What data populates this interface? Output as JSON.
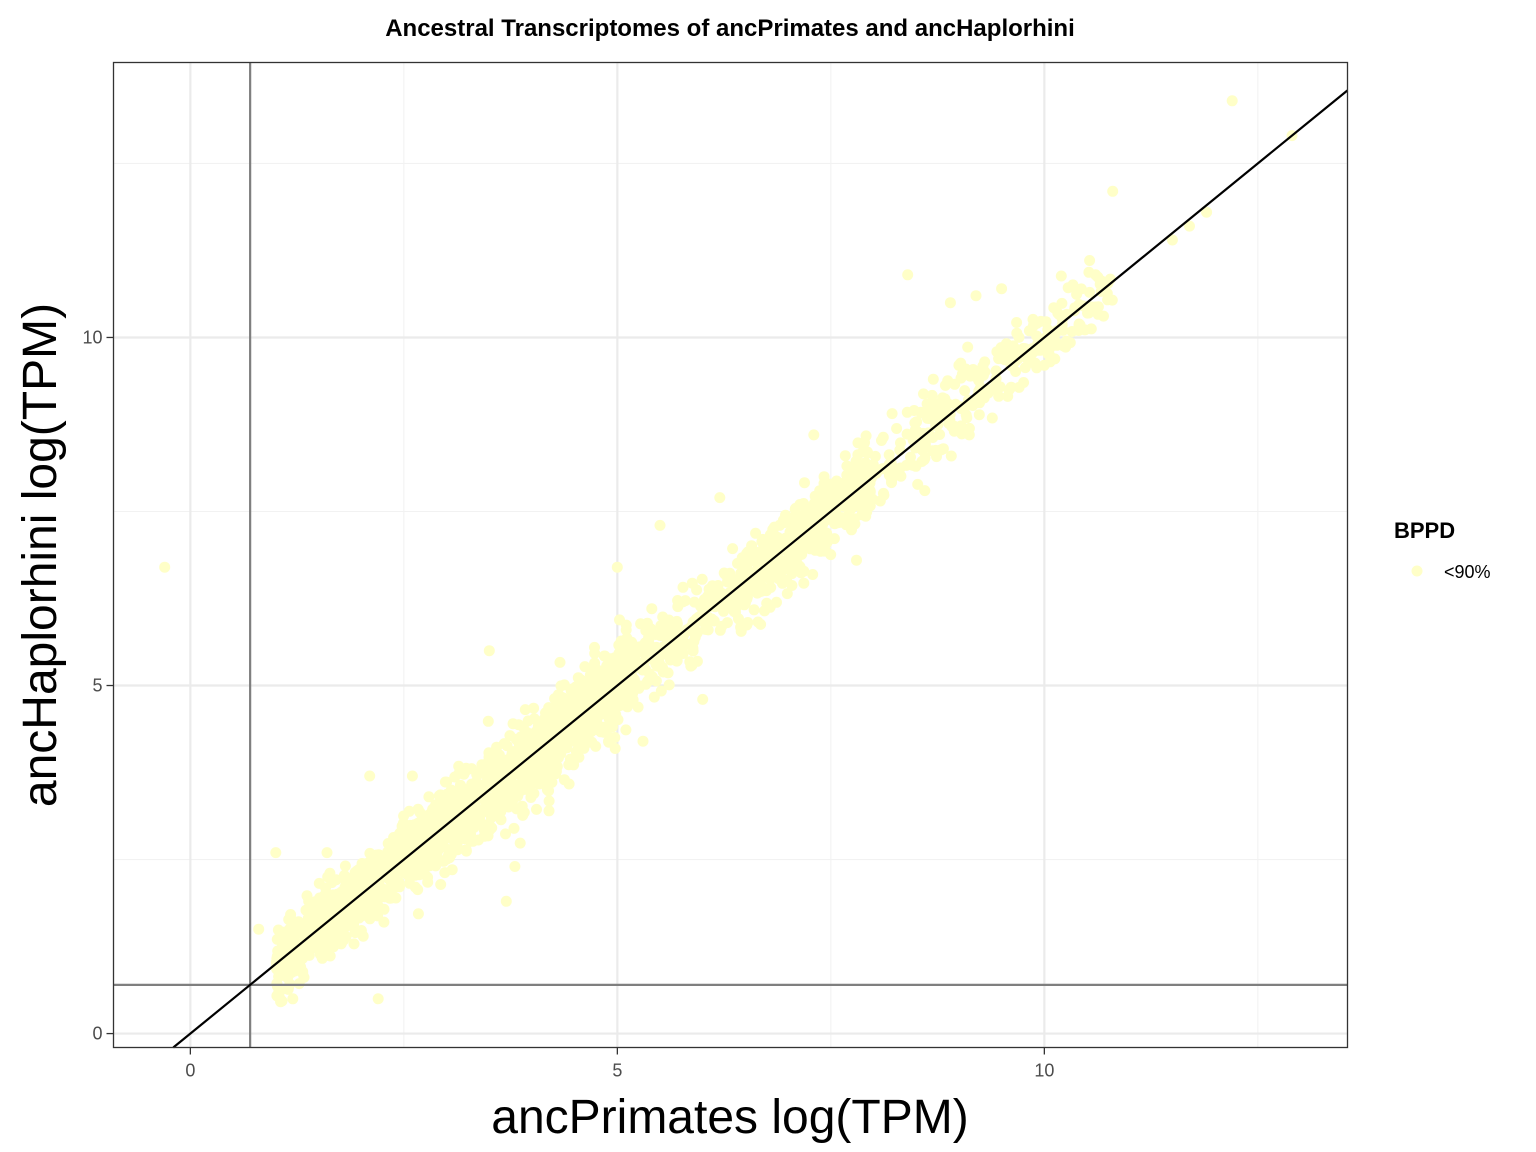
{
  "chart_data": {
    "type": "scatter",
    "title": "Ancestral Transcriptomes of ancPrimates and ancHaplorhini",
    "xlabel": "ancPrimates log(TPM)",
    "ylabel": "ancHaplorhini log(TPM)",
    "xlim": [
      -0.9,
      13.55
    ],
    "ylim": [
      -0.2,
      13.95
    ],
    "x_ticks": [
      0,
      5,
      10
    ],
    "y_ticks": [
      0,
      5,
      10
    ],
    "x_tick_labels": [
      "0",
      "5",
      "10"
    ],
    "y_tick_labels": [
      "0",
      "5",
      "10"
    ],
    "grid": true,
    "reference_lines": {
      "vertical_x": 0.7,
      "horizontal_y": 0.7,
      "diagonal": "y = x"
    },
    "legend": {
      "title": "BPPD",
      "position": "right",
      "entries": [
        {
          "label": "<90%",
          "color": "#ffffc8"
        }
      ]
    },
    "point_color": "#ffffc8",
    "series": [
      {
        "name": "<90%",
        "points": [
          [
            -0.3,
            6.7
          ],
          [
            12.2,
            13.4
          ],
          [
            12.9,
            12.9
          ],
          [
            10.8,
            12.1
          ],
          [
            11.7,
            11.6
          ],
          [
            11.5,
            11.4
          ],
          [
            11.9,
            11.8
          ],
          [
            8.4,
            10.9
          ],
          [
            9.2,
            10.6
          ],
          [
            9.5,
            10.7
          ],
          [
            8.9,
            10.5
          ],
          [
            10.6,
            10.9
          ],
          [
            9.0,
            9.6
          ],
          [
            8.7,
            9.4
          ],
          [
            7.3,
            8.6
          ],
          [
            5.5,
            7.3
          ],
          [
            6.2,
            7.7
          ],
          [
            5.0,
            6.7
          ],
          [
            3.5,
            5.5
          ],
          [
            1.0,
            2.6
          ],
          [
            2.1,
            3.7
          ],
          [
            1.6,
            2.6
          ],
          [
            2.6,
            3.7
          ],
          [
            2.2,
            0.5
          ],
          [
            1.2,
            0.5
          ],
          [
            0.8,
            1.5
          ],
          [
            6.8,
            6.6
          ],
          [
            7.8,
            6.8
          ],
          [
            8.6,
            7.8
          ],
          [
            10.0,
            9.6
          ],
          [
            4.2,
            3.2
          ],
          [
            3.8,
            2.4
          ],
          [
            3.7,
            1.9
          ],
          [
            6.0,
            4.8
          ],
          [
            5.3,
            4.2
          ],
          [
            5.8,
            5.6
          ]
        ]
      }
    ]
  }
}
